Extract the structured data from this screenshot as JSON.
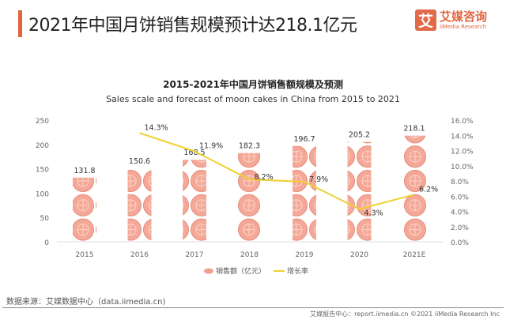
{
  "header": {
    "title": "2021年中国月饼销售规模预计达218.1亿元",
    "logo_mark": "艾",
    "logo_cn": "艾媒咨询",
    "logo_en": "iiMedia Research"
  },
  "chart_data": {
    "type": "bar",
    "title": "2015-2021年中国月饼销售额规模及预测",
    "subtitle": "Sales scale and forecast of moon cakes in China from 2015 to 2021",
    "categories": [
      "2015",
      "2016",
      "2017",
      "2018",
      "2019",
      "2020",
      "2021E"
    ],
    "series": [
      {
        "name": "销售额（亿元）",
        "type": "bar",
        "axis": "left",
        "values": [
          131.8,
          150.6,
          168.5,
          182.3,
          196.7,
          205.2,
          218.1
        ],
        "labels": [
          "131.8",
          "150.6",
          "168.5",
          "182.3",
          "196.7",
          "205.2",
          "218.1"
        ],
        "color": "#f0a090"
      },
      {
        "name": "增长率",
        "type": "line",
        "axis": "right",
        "values": [
          null,
          14.3,
          11.9,
          8.2,
          7.9,
          4.3,
          6.2
        ],
        "labels": [
          "",
          "14.3%",
          "11.9%",
          "8.2%",
          "7.9%",
          "4.3%",
          "6.2%"
        ],
        "color": "#f0d030"
      }
    ],
    "ylim": [
      0,
      250
    ],
    "yticks": [
      "0",
      "50",
      "100",
      "150",
      "200",
      "250"
    ],
    "y2lim": [
      0,
      16
    ],
    "y2ticks": [
      "0.0%",
      "2.0%",
      "4.0%",
      "6.0%",
      "8.0%",
      "10.0%",
      "12.0%",
      "14.0%",
      "16.0%"
    ],
    "legend": "bottom"
  },
  "footer": {
    "source": "数据来源：艾媒数据中心（data.iimedia.cn)",
    "report": "艾媒报告中心：report.iimedia.cn   ©2021  iiMedia Research  Inc"
  }
}
